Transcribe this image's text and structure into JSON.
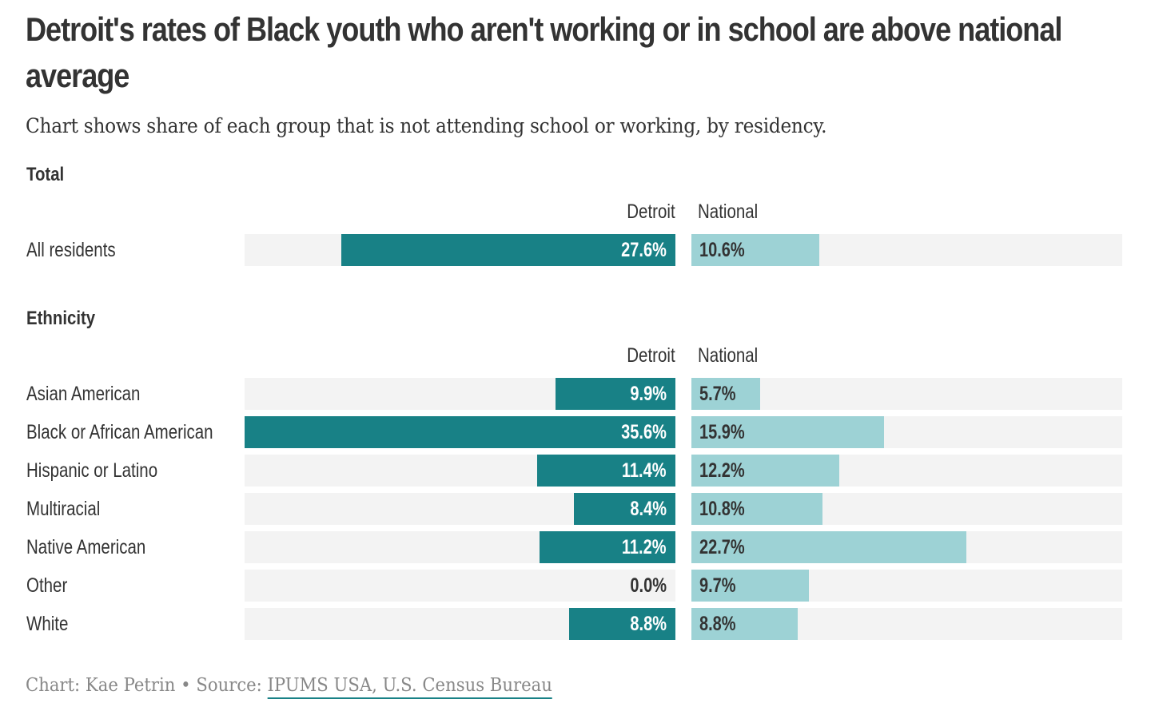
{
  "chart_data": {
    "type": "bar",
    "orientation": "horizontal-diverging",
    "title": "Detroit's rates of Black youth who aren't working or in school are above national average",
    "subtitle": "Chart shows share of each group that is not attending school or working, by residency.",
    "columns": [
      "Detroit",
      "National"
    ],
    "colors": {
      "Detroit": "#188186",
      "National": "#9dd2d5",
      "track": "#f3f3f3"
    },
    "xlim": [
      0,
      35.6
    ],
    "unit": "%",
    "sections": [
      {
        "label": "Total",
        "categories": [
          "All residents"
        ],
        "series": [
          {
            "name": "Detroit",
            "values": [
              27.6
            ],
            "labels": [
              "27.6%"
            ]
          },
          {
            "name": "National",
            "values": [
              10.6
            ],
            "labels": [
              "10.6%"
            ]
          }
        ]
      },
      {
        "label": "Ethnicity",
        "categories": [
          "Asian American",
          "Black or African American",
          "Hispanic or Latino",
          "Multiracial",
          "Native American",
          "Other",
          "White"
        ],
        "series": [
          {
            "name": "Detroit",
            "values": [
              9.9,
              35.6,
              11.4,
              8.4,
              11.2,
              0.0,
              8.8
            ],
            "labels": [
              "9.9%",
              "35.6%",
              "11.4%",
              "8.4%",
              "11.2%",
              "0.0%",
              "8.8%"
            ]
          },
          {
            "name": "National",
            "values": [
              5.7,
              15.9,
              12.2,
              10.8,
              22.7,
              9.7,
              8.8
            ],
            "labels": [
              "5.7%",
              "15.9%",
              "12.2%",
              "10.8%",
              "22.7%",
              "9.7%",
              "8.8%"
            ]
          }
        ]
      }
    ]
  },
  "footer": {
    "credit": "Chart: Kae Petrin • Source: ",
    "source_link": "IPUMS USA, U.S. Census Bureau"
  }
}
